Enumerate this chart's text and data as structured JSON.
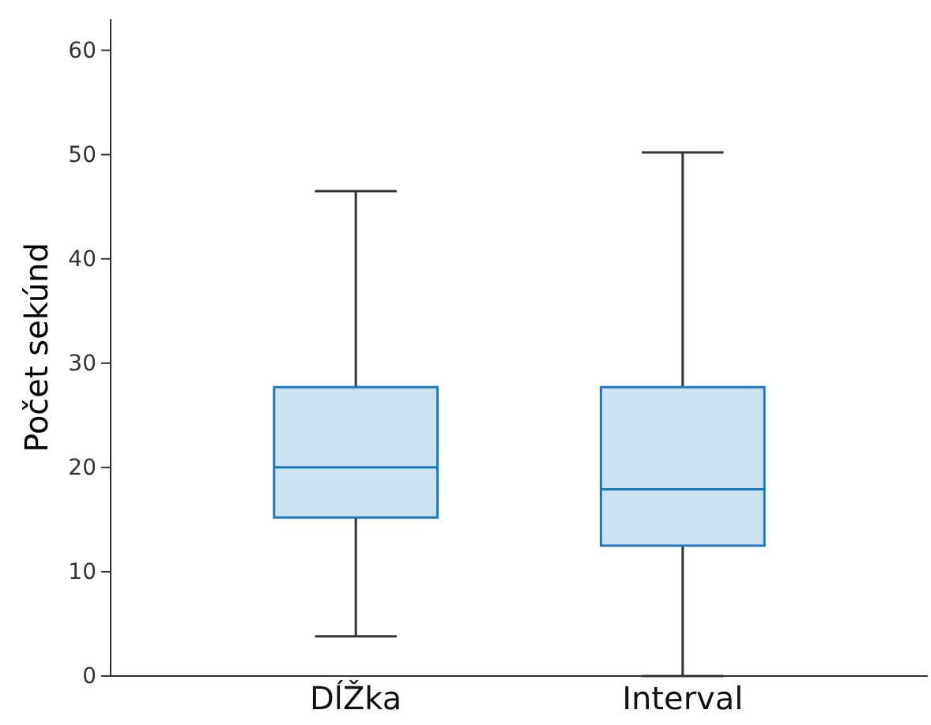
{
  "chart_data": {
    "type": "box",
    "ylabel": "Počet sekúnd",
    "categories": [
      "DĺŽka",
      "Interval"
    ],
    "boxes": [
      {
        "low": 3.8,
        "q1": 15.2,
        "median": 20,
        "q3": 27.7,
        "high": 46.5
      },
      {
        "low": 0,
        "q1": 12.5,
        "median": 17.9,
        "q3": 27.7,
        "high": 50.2
      }
    ],
    "color": "#1a7abf",
    "ylim": [
      0,
      63
    ],
    "yticks": [
      0,
      10,
      20,
      30,
      40,
      50,
      60
    ]
  }
}
